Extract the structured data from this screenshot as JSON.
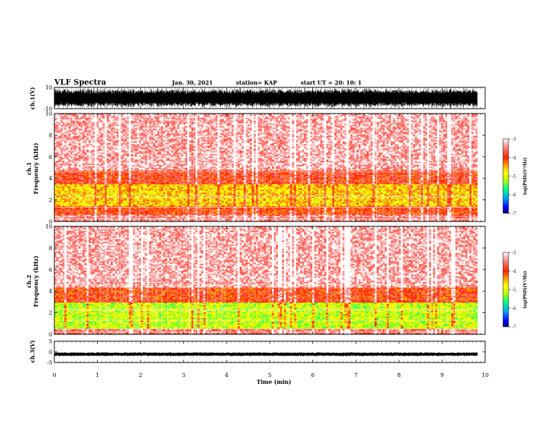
{
  "header": {
    "title": "VLF Spectra",
    "date": "Jan. 30, 2021",
    "station": "station= KAP",
    "start": "start  UT =   20: 10: 1"
  },
  "colors": {
    "waveform": "#000000",
    "colorbar": [
      "#000066",
      "#0000ff",
      "#00a0ff",
      "#00ff80",
      "#c0ff00",
      "#ffff00",
      "#ffa000",
      "#ff2000",
      "#ff9090",
      "#ffffff"
    ]
  },
  "chart_data": [
    {
      "type": "line",
      "panel": "ch1-waveform",
      "ylabel": "ch.1(V)",
      "ylim": [
        -10,
        10
      ],
      "yticks": [
        "10",
        "-10"
      ],
      "xlim": [
        0,
        10
      ],
      "description_series": "dense black waveform, amplitude roughly -8 to 8 V over 0–9.8 min"
    },
    {
      "type": "heatmap",
      "panel": "ch1-spectrogram",
      "ylabel": "ch.1\nFrequency  (kHz)",
      "ylabel_lines": [
        "ch.1",
        "Frequency  (kHz)"
      ],
      "ylim": [
        0,
        10
      ],
      "yticks": [
        "0",
        "2",
        "4",
        "6",
        "8",
        "10"
      ],
      "xlim": [
        0,
        10
      ],
      "data_extent_min": 9.82,
      "colorbar": {
        "label": "log(PSD)(V²/Hz)",
        "range": [
          -7,
          -3
        ],
        "ticks": [
          "-3",
          "-4",
          "-5",
          "-6",
          "-7"
        ]
      },
      "bands": [
        {
          "f": [
            0,
            0.6
          ],
          "level": -3.5
        },
        {
          "f": [
            0.6,
            1.4
          ],
          "level": -4.0
        },
        {
          "f": [
            1.4,
            3.4
          ],
          "level": -4.6
        },
        {
          "f": [
            3.4,
            4.8
          ],
          "level": -3.9
        },
        {
          "f": [
            4.8,
            10
          ],
          "level": -3.3
        }
      ]
    },
    {
      "type": "heatmap",
      "panel": "ch2-spectrogram",
      "ylabel_lines": [
        "ch.2",
        "Frequency  (kHz)"
      ],
      "ylim": [
        0,
        10
      ],
      "yticks": [
        "0",
        "2",
        "4",
        "6",
        "8",
        "10"
      ],
      "xlim": [
        0,
        10
      ],
      "data_extent_min": 9.82,
      "colorbar": {
        "label": "log(PSD)(V²/Hz)",
        "range": [
          -7,
          -3
        ],
        "ticks": [
          "-3",
          "-4",
          "-5",
          "-6",
          "-7"
        ]
      },
      "bands": [
        {
          "f": [
            0,
            0.5
          ],
          "level": -3.6
        },
        {
          "f": [
            0.5,
            3.0
          ],
          "level": -5.1
        },
        {
          "f": [
            3.0,
            4.4
          ],
          "level": -4.0
        },
        {
          "f": [
            4.4,
            10
          ],
          "level": -3.3
        }
      ]
    },
    {
      "type": "line",
      "panel": "ch3-waveform",
      "ylabel": "ch.3(V)",
      "ylim": [
        -5,
        5
      ],
      "yticks": [
        "5",
        "0",
        "-5"
      ],
      "xlim": [
        0,
        10
      ],
      "xlabel": "Time  (min)",
      "xticks": [
        "0",
        "1",
        "2",
        "3",
        "4",
        "5",
        "6",
        "7",
        "8",
        "9",
        "10"
      ],
      "description_series": "thick flat black band near -1 V over 0–9.8 min"
    }
  ]
}
